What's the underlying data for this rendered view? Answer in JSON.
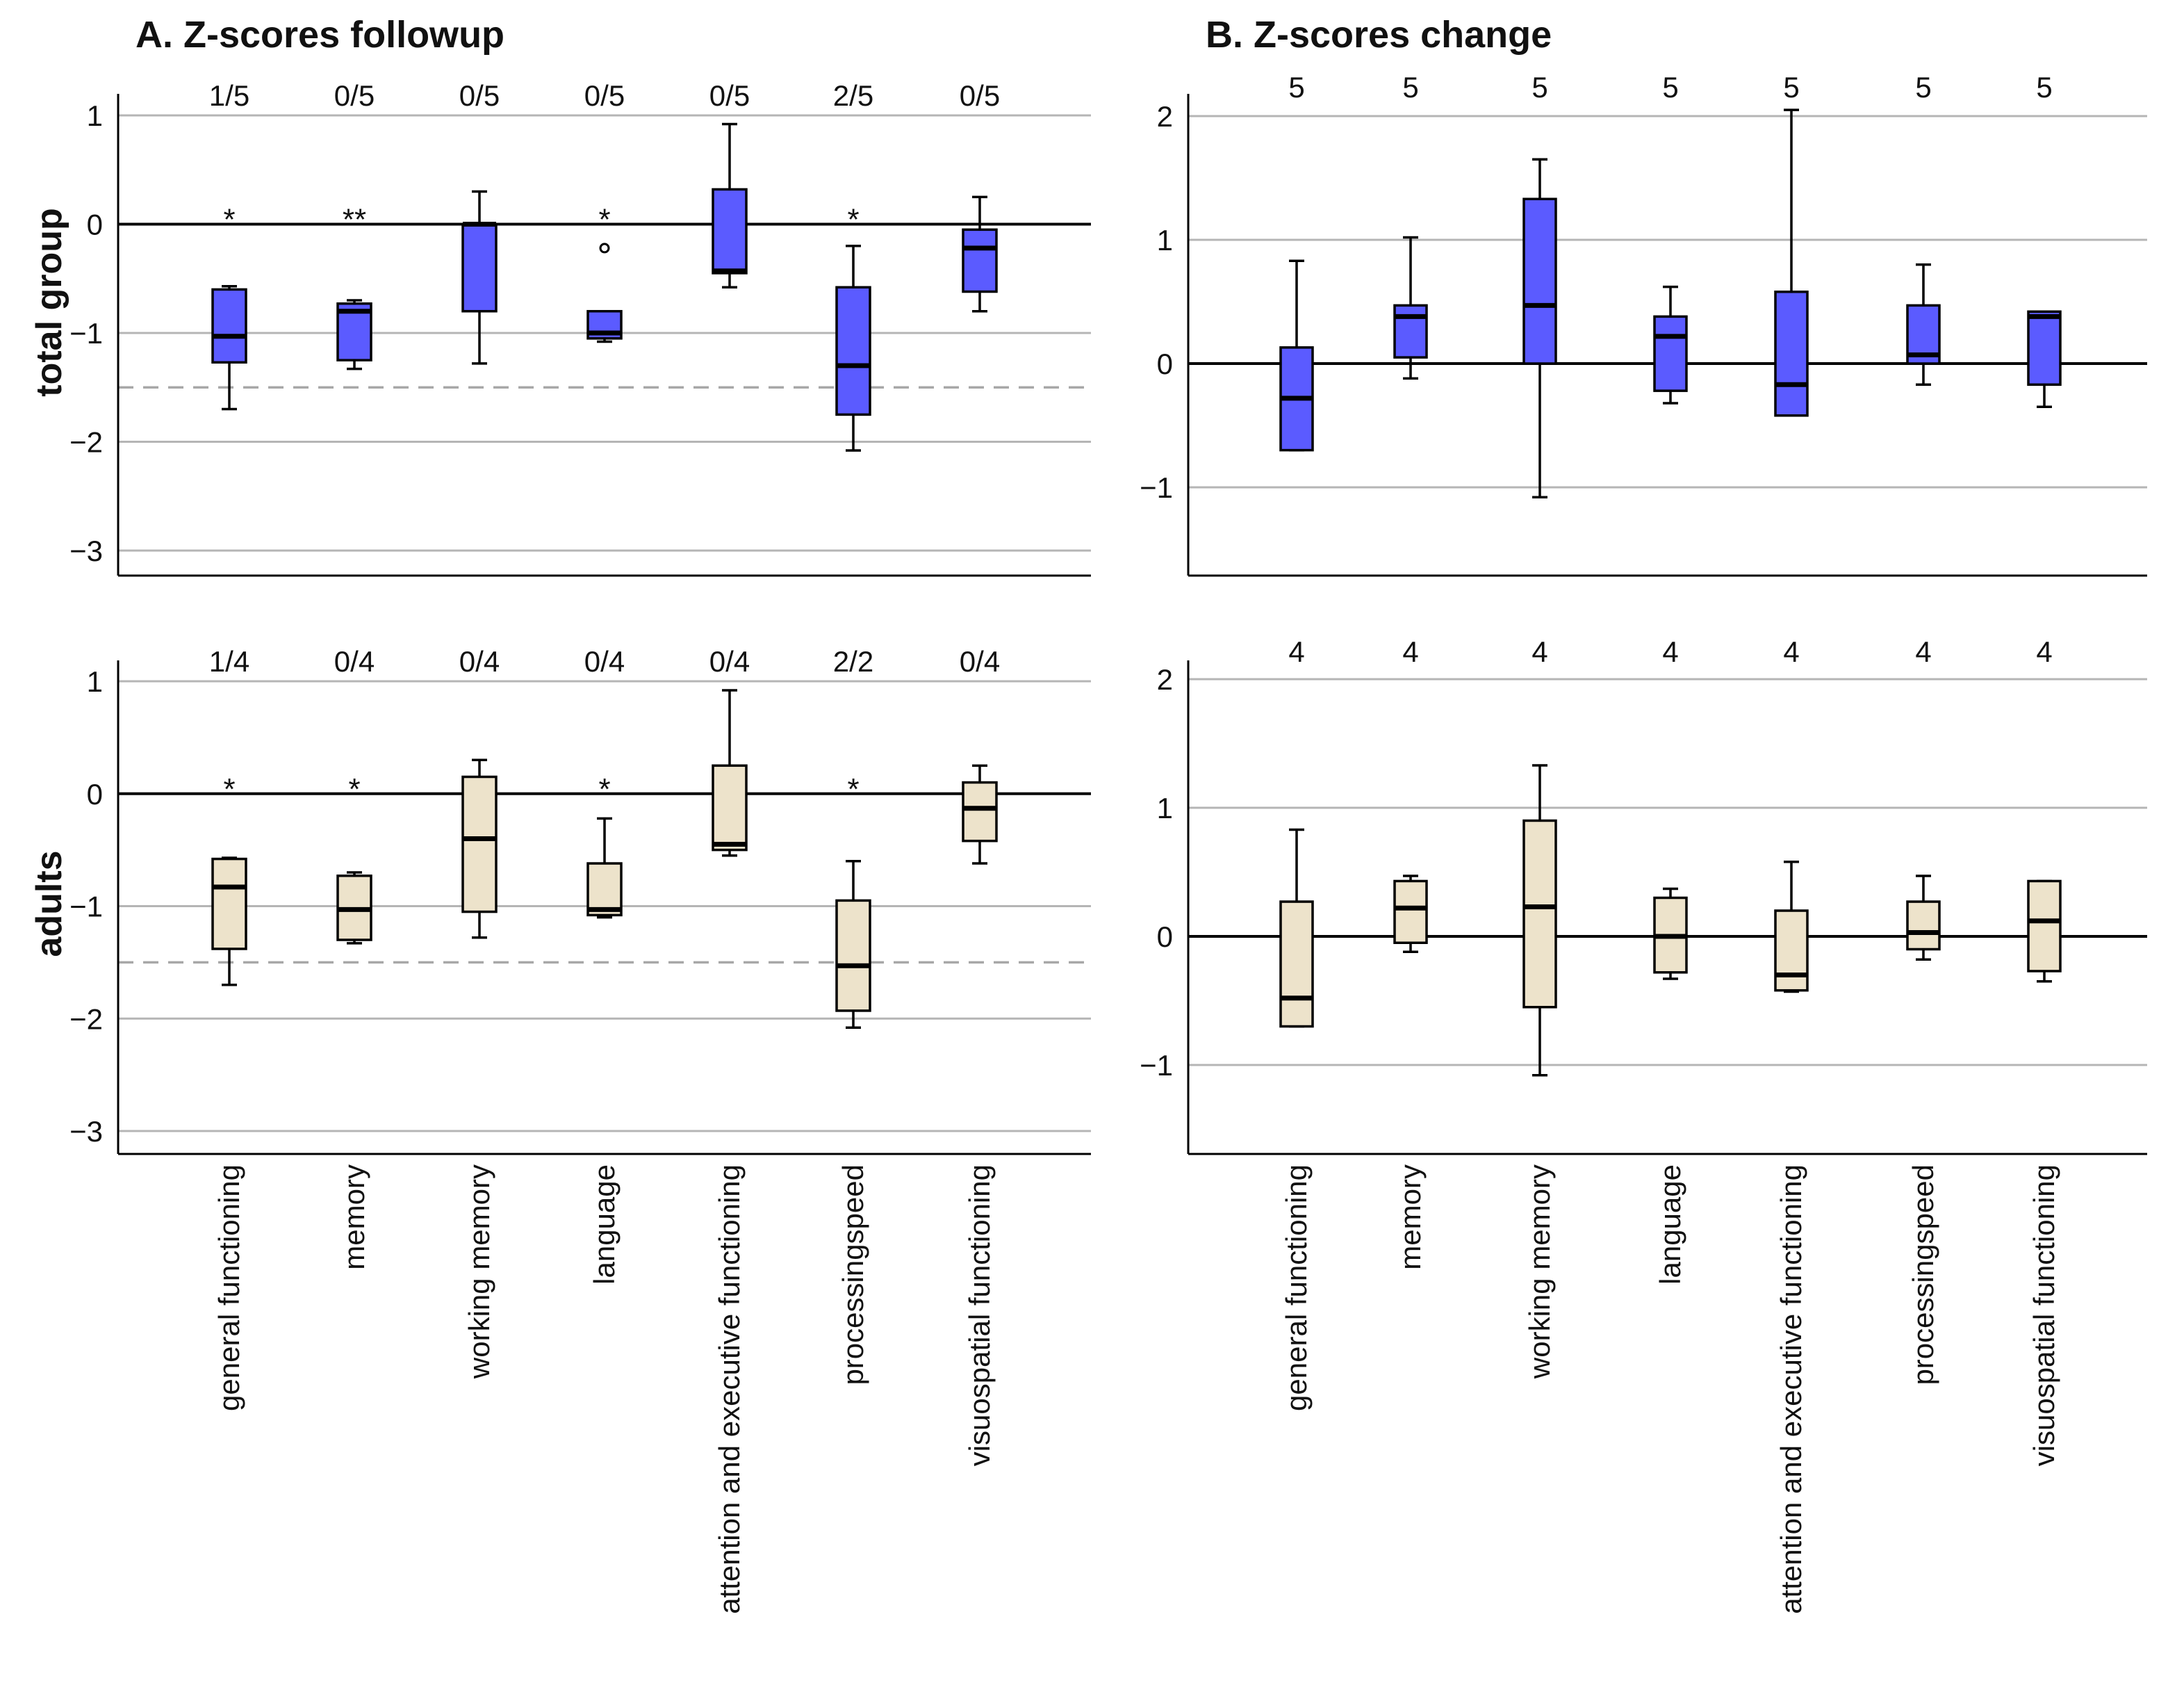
{
  "chart_data": {
    "type": "boxplot",
    "categories": [
      "general functioning",
      "memory",
      "working memory",
      "language",
      "attention and executive functioning",
      "processingspeed",
      "visuospatial functioning"
    ],
    "columns": [
      {
        "title": "A. Z-scores followup",
        "ylim": [
          -3.2,
          1.2
        ],
        "yticks": [
          1,
          0,
          -1,
          -2,
          -3
        ],
        "cutoff": -1.5
      },
      {
        "title": "B. Z-scores change",
        "ylim": [
          -1.65,
          2.2
        ],
        "yticks": [
          2,
          1,
          0,
          -1
        ],
        "cutoff": null
      }
    ],
    "rows": [
      {
        "label": "total group",
        "color": "#5B5BFF"
      },
      {
        "label": "adults",
        "color": "#EDE3CB"
      }
    ],
    "panels": [
      {
        "col": 0,
        "row": 0,
        "counts": [
          "1/5",
          "0/5",
          "0/5",
          "0/5",
          "0/5",
          "2/5",
          "0/5"
        ],
        "stars": [
          "*",
          "**",
          "",
          "*",
          "",
          "*",
          ""
        ],
        "boxes": [
          {
            "whislo": -1.7,
            "q1": -1.27,
            "med": -1.03,
            "q3": -0.6,
            "whishi": -0.57
          },
          {
            "whislo": -1.33,
            "q1": -1.25,
            "med": -0.8,
            "q3": -0.73,
            "whishi": -0.7
          },
          {
            "whislo": -1.28,
            "q1": -0.8,
            "med": 0.0,
            "q3": 0.0,
            "whishi": 0.3
          },
          {
            "whislo": -1.08,
            "q1": -1.05,
            "med": -1.0,
            "q3": -0.8,
            "whishi": -0.8,
            "fliers": [
              -0.22
            ]
          },
          {
            "whislo": -0.58,
            "q1": -0.45,
            "med": -0.43,
            "q3": 0.32,
            "whishi": 0.92
          },
          {
            "whislo": -2.08,
            "q1": -1.75,
            "med": -1.3,
            "q3": -0.58,
            "whishi": -0.2
          },
          {
            "whislo": -0.8,
            "q1": -0.62,
            "med": -0.22,
            "q3": -0.05,
            "whishi": 0.25
          }
        ]
      },
      {
        "col": 1,
        "row": 0,
        "counts": [
          "5",
          "5",
          "5",
          "5",
          "5",
          "5",
          "5"
        ],
        "stars": [
          "",
          "",
          "",
          "",
          "",
          "",
          ""
        ],
        "boxes": [
          {
            "whislo": -0.7,
            "q1": -0.7,
            "med": -0.28,
            "q3": 0.13,
            "whishi": 0.83
          },
          {
            "whislo": -0.12,
            "q1": 0.05,
            "med": 0.38,
            "q3": 0.47,
            "whishi": 1.02
          },
          {
            "whislo": -1.08,
            "q1": 0.0,
            "med": 0.47,
            "q3": 1.33,
            "whishi": 1.65
          },
          {
            "whislo": -0.32,
            "q1": -0.22,
            "med": 0.22,
            "q3": 0.38,
            "whishi": 0.62
          },
          {
            "whislo": -0.42,
            "q1": -0.42,
            "med": -0.17,
            "q3": 0.58,
            "whishi": 2.05
          },
          {
            "whislo": -0.17,
            "q1": 0.0,
            "med": 0.07,
            "q3": 0.47,
            "whishi": 0.8
          },
          {
            "whislo": -0.35,
            "q1": -0.17,
            "med": 0.38,
            "q3": 0.42,
            "whishi": 0.42
          }
        ]
      },
      {
        "col": 0,
        "row": 1,
        "counts": [
          "1/4",
          "0/4",
          "0/4",
          "0/4",
          "0/4",
          "2/2",
          "0/4"
        ],
        "stars": [
          "*",
          "*",
          "",
          "*",
          "",
          "*",
          ""
        ],
        "boxes": [
          {
            "whislo": -1.7,
            "q1": -1.38,
            "med": -0.83,
            "q3": -0.58,
            "whishi": -0.57
          },
          {
            "whislo": -1.33,
            "q1": -1.3,
            "med": -1.03,
            "q3": -0.73,
            "whishi": -0.7
          },
          {
            "whislo": -1.28,
            "q1": -1.05,
            "med": -0.4,
            "q3": 0.15,
            "whishi": 0.3
          },
          {
            "whislo": -1.1,
            "q1": -1.08,
            "med": -1.03,
            "q3": -0.62,
            "whishi": -0.22
          },
          {
            "whislo": -0.55,
            "q1": -0.5,
            "med": -0.45,
            "q3": 0.25,
            "whishi": 0.92
          },
          {
            "whislo": -2.08,
            "q1": -1.93,
            "med": -1.53,
            "q3": -0.95,
            "whishi": -0.6
          },
          {
            "whislo": -0.62,
            "q1": -0.42,
            "med": -0.13,
            "q3": 0.1,
            "whishi": 0.25
          }
        ]
      },
      {
        "col": 1,
        "row": 1,
        "counts": [
          "4",
          "4",
          "4",
          "4",
          "4",
          "4",
          "4"
        ],
        "stars": [
          "",
          "",
          "",
          "",
          "",
          "",
          ""
        ],
        "boxes": [
          {
            "whislo": -0.7,
            "q1": -0.7,
            "med": -0.48,
            "q3": 0.27,
            "whishi": 0.83
          },
          {
            "whislo": -0.12,
            "q1": -0.05,
            "med": 0.22,
            "q3": 0.43,
            "whishi": 0.47
          },
          {
            "whislo": -1.08,
            "q1": -0.55,
            "med": 0.23,
            "q3": 0.9,
            "whishi": 1.33
          },
          {
            "whislo": -0.33,
            "q1": -0.28,
            "med": 0.0,
            "q3": 0.3,
            "whishi": 0.37
          },
          {
            "whislo": -0.43,
            "q1": -0.42,
            "med": -0.3,
            "q3": 0.2,
            "whishi": 0.58
          },
          {
            "whislo": -0.18,
            "q1": -0.1,
            "med": 0.03,
            "q3": 0.27,
            "whishi": 0.47
          },
          {
            "whislo": -0.35,
            "q1": -0.27,
            "med": 0.12,
            "q3": 0.43,
            "whishi": 0.43
          }
        ]
      }
    ]
  }
}
